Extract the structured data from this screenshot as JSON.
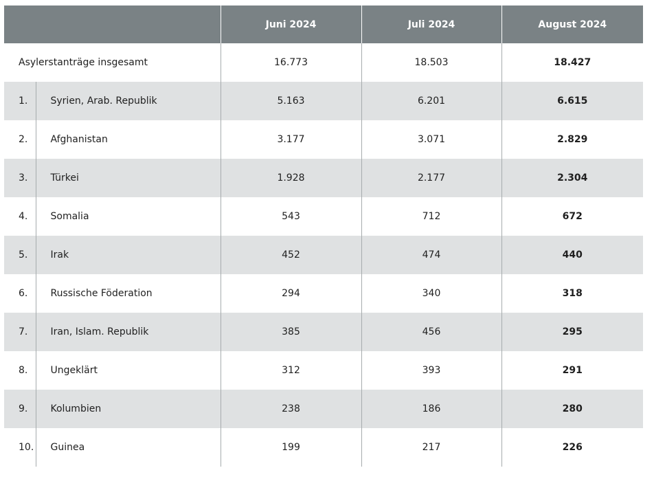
{
  "header": {
    "corner": "",
    "col1": "Juni 2024",
    "col2": "Juli 2024",
    "col3": "August 2024"
  },
  "total": {
    "label": "Asylerstanträge insgesamt",
    "juni": "16.773",
    "juli": "18.503",
    "august": "18.427"
  },
  "rows": [
    {
      "rank": "1.",
      "country": "Syrien, Arab. Republik",
      "juni": "5.163",
      "juli": "6.201",
      "august": "6.615"
    },
    {
      "rank": "2.",
      "country": "Afghanistan",
      "juni": "3.177",
      "juli": "3.071",
      "august": "2.829"
    },
    {
      "rank": "3.",
      "country": "Türkei",
      "juni": "1.928",
      "juli": "2.177",
      "august": "2.304"
    },
    {
      "rank": "4.",
      "country": "Somalia",
      "juni": "543",
      "juli": "712",
      "august": "672"
    },
    {
      "rank": "5.",
      "country": "Irak",
      "juni": "452",
      "juli": "474",
      "august": "440"
    },
    {
      "rank": "6.",
      "country": "Russische Föderation",
      "juni": "294",
      "juli": "340",
      "august": "318"
    },
    {
      "rank": "7.",
      "country": "Iran, Islam. Republik",
      "juni": "385",
      "juli": "456",
      "august": "295"
    },
    {
      "rank": "8.",
      "country": "Ungeklärt",
      "juni": "312",
      "juli": "393",
      "august": "291"
    },
    {
      "rank": "9.",
      "country": "Kolumbien",
      "juni": "238",
      "juli": "186",
      "august": "280"
    },
    {
      "rank": "10.",
      "country": "Guinea",
      "juni": "199",
      "juli": "217",
      "august": "226"
    }
  ],
  "colors": {
    "header_bg": "#7a8285",
    "header_text": "#ffffff",
    "stripe_bg": "#dfe1e2",
    "divider": "#a6abad"
  }
}
